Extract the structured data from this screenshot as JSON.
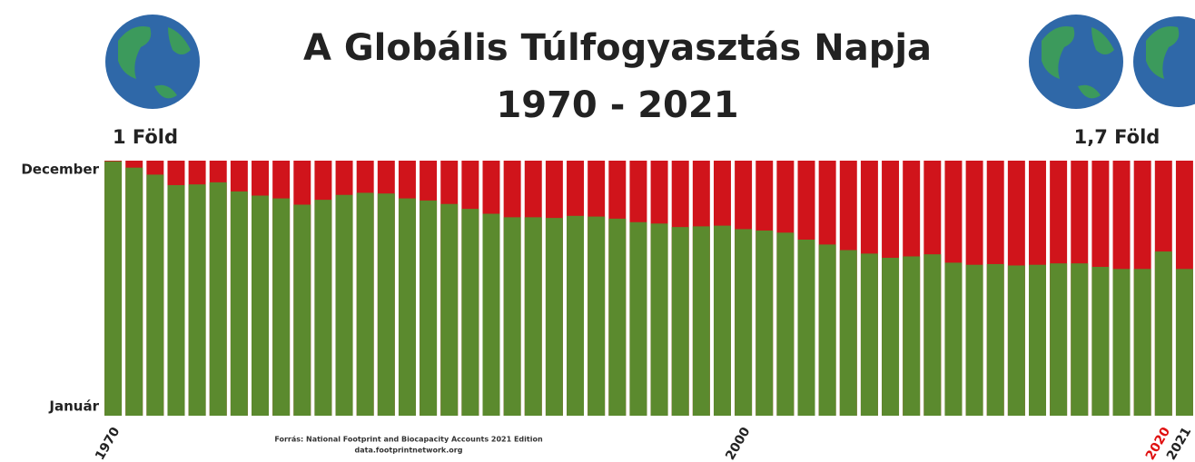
{
  "chart_data": {
    "type": "bar",
    "title": "A Globális Túlfogyasztás Napja",
    "subtitle": "1970 - 2021",
    "left_note": "1 Föld",
    "right_note": "1,7 Föld",
    "source": [
      "Forrás: National Footprint and Biocapacity Accounts 2021 Edition",
      "data.footprintnetwork.org"
    ],
    "categories": [
      "1970",
      null,
      null,
      null,
      null,
      null,
      null,
      null,
      null,
      null,
      null,
      null,
      null,
      null,
      null,
      null,
      null,
      null,
      null,
      null,
      null,
      null,
      null,
      null,
      null,
      null,
      null,
      null,
      null,
      null,
      "2000",
      null,
      null,
      null,
      null,
      null,
      null,
      null,
      null,
      null,
      null,
      null,
      null,
      null,
      null,
      null,
      null,
      null,
      null,
      null,
      "2020",
      "2021"
    ],
    "values": [
      364,
      355,
      345,
      330,
      331,
      334,
      321,
      315,
      311,
      302,
      309,
      316,
      319,
      318,
      311,
      308,
      303,
      296,
      289,
      284,
      284,
      283,
      286,
      285,
      282,
      277,
      275,
      270,
      271,
      272,
      267,
      265,
      262,
      252,
      245,
      237,
      232,
      226,
      228,
      231,
      219,
      216,
      217,
      215,
      216,
      218,
      218,
      213,
      210,
      210,
      235,
      210
    ],
    "color": "#5b8a2e",
    "background_color": "#d0141b",
    "ylim": [
      0,
      365
    ],
    "yticks": [
      {
        "value": 0,
        "label": "Január"
      },
      {
        "value": 365,
        "label": "December"
      }
    ],
    "grid": false
  }
}
